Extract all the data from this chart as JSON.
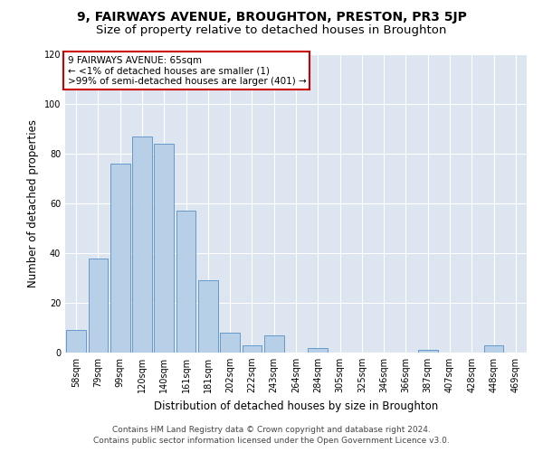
{
  "title": "9, FAIRWAYS AVENUE, BROUGHTON, PRESTON, PR3 5JP",
  "subtitle": "Size of property relative to detached houses in Broughton",
  "xlabel": "Distribution of detached houses by size in Broughton",
  "ylabel": "Number of detached properties",
  "categories": [
    "58sqm",
    "79sqm",
    "99sqm",
    "120sqm",
    "140sqm",
    "161sqm",
    "181sqm",
    "202sqm",
    "222sqm",
    "243sqm",
    "264sqm",
    "284sqm",
    "305sqm",
    "325sqm",
    "346sqm",
    "366sqm",
    "387sqm",
    "407sqm",
    "428sqm",
    "448sqm",
    "469sqm"
  ],
  "values": [
    9,
    38,
    76,
    87,
    84,
    57,
    29,
    8,
    3,
    7,
    0,
    2,
    0,
    0,
    0,
    0,
    1,
    0,
    0,
    3,
    0
  ],
  "bar_color": "#b8cfe8",
  "bar_edge_color": "#6699cc",
  "annotation_box_text": "9 FAIRWAYS AVENUE: 65sqm\n← <1% of detached houses are smaller (1)\n>99% of semi-detached houses are larger (401) →",
  "annotation_box_color": "#ffffff",
  "annotation_box_edge_color": "#cc0000",
  "ylim": [
    0,
    120
  ],
  "yticks": [
    0,
    20,
    40,
    60,
    80,
    100,
    120
  ],
  "bg_color": "#dde5f0",
  "footer_line1": "Contains HM Land Registry data © Crown copyright and database right 2024.",
  "footer_line2": "Contains public sector information licensed under the Open Government Licence v3.0.",
  "title_fontsize": 10,
  "subtitle_fontsize": 9.5,
  "annotation_fontsize": 7.5,
  "axis_label_fontsize": 8.5,
  "tick_fontsize": 7,
  "footer_fontsize": 6.5
}
